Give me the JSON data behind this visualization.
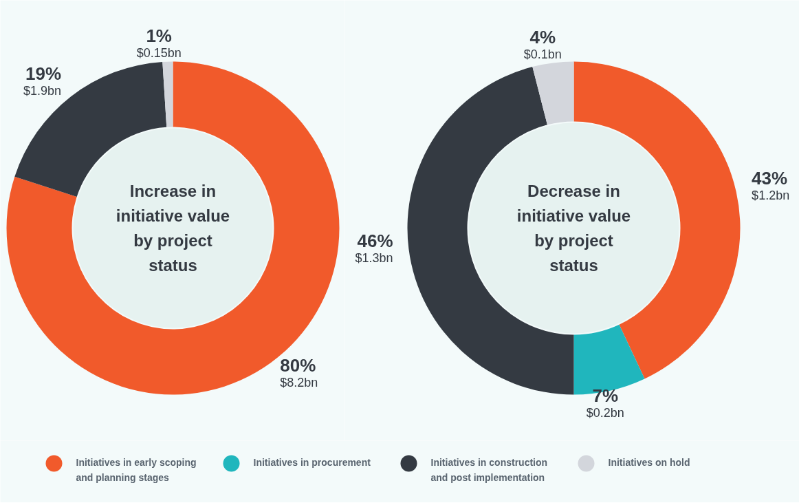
{
  "chart_data": [
    {
      "type": "donut",
      "title": "Increase in initiative value by project status",
      "categories": [
        null,
        null,
        null
      ],
      "values": [
        80,
        19,
        1
      ],
      "colors": [
        "#f15a2b",
        "#343a42",
        "#d3d6dc"
      ],
      "value_labels": [
        "80%\n$8.2bn",
        "19%\n$1.9bn",
        "1%\n$0.15bn"
      ],
      "legend": false
    },
    {
      "type": "donut",
      "title": "Decrease in initiative value by project status",
      "categories": [
        "Initiatives in early scoping and planning stages",
        "Initiatives in procurement",
        "Initiatives in construction and post implementation",
        "Initiatives on hold"
      ],
      "values": [
        43,
        7,
        46,
        4
      ],
      "colors": [
        "#f15a2b",
        "#20b6bd",
        "#343a42",
        "#d3d6dc"
      ],
      "value_labels": [
        "43%\n$1.2bn",
        "7%\n$0.2bn",
        "46%\n$1.3bn",
        "4%\n$0.1bn"
      ],
      "legend": "bottom"
    }
  ]
}
